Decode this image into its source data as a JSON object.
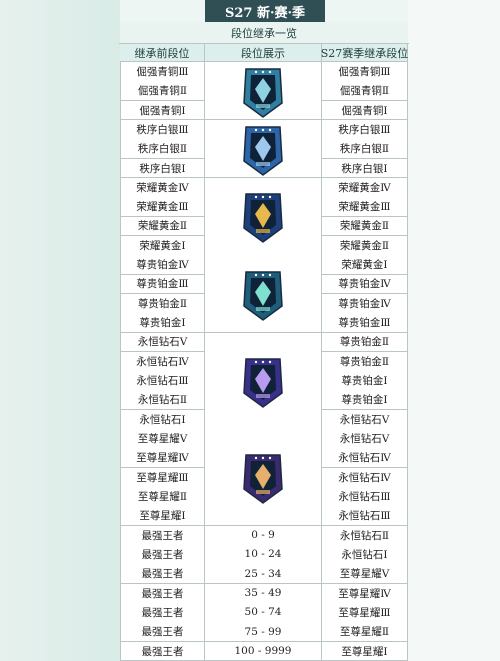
{
  "header": {
    "title": "S27 新·赛·季",
    "subtitle": "段位继承一览"
  },
  "table": {
    "columns": [
      "继承前段位",
      "段位展示",
      "S27赛季继承段位"
    ],
    "rows": [
      {
        "before": "倔强青铜Ⅲ",
        "after": "倔强青铜Ⅲ"
      },
      {
        "before": "倔强青铜Ⅱ",
        "after": "倔强青铜Ⅱ"
      },
      {
        "before": "倔强青铜Ⅰ",
        "after": "倔强青铜Ⅰ"
      },
      {
        "before": "秩序白银Ⅲ",
        "after": "秩序白银Ⅲ"
      },
      {
        "before": "秩序白银Ⅱ",
        "after": "秩序白银Ⅱ"
      },
      {
        "before": "秩序白银Ⅰ",
        "after": "秩序白银Ⅰ"
      },
      {
        "before": "荣耀黄金Ⅳ",
        "after": "荣耀黄金Ⅳ"
      },
      {
        "before": "荣耀黄金Ⅲ",
        "after": "荣耀黄金Ⅲ"
      },
      {
        "before": "荣耀黄金Ⅱ",
        "after": "荣耀黄金Ⅱ"
      },
      {
        "before": "荣耀黄金Ⅰ",
        "after": "荣耀黄金Ⅱ"
      },
      {
        "before": "尊贵铂金Ⅳ",
        "after": "荣耀黄金Ⅰ"
      },
      {
        "before": "尊贵铂金Ⅲ",
        "after": "尊贵铂金Ⅳ"
      },
      {
        "before": "尊贵铂金Ⅱ",
        "after": "尊贵铂金Ⅳ"
      },
      {
        "before": "尊贵铂金Ⅰ",
        "after": "尊贵铂金Ⅲ"
      },
      {
        "before": "永恒钻石Ⅴ",
        "after": "尊贵铂金Ⅱ"
      },
      {
        "before": "永恒钻石Ⅳ",
        "after": "尊贵铂金Ⅱ"
      },
      {
        "before": "永恒钻石Ⅲ",
        "after": "尊贵铂金Ⅰ"
      },
      {
        "before": "永恒钻石Ⅱ",
        "after": "尊贵铂金Ⅰ"
      },
      {
        "before": "永恒钻石Ⅰ",
        "after": "永恒钻石Ⅴ"
      },
      {
        "before": "至尊星耀Ⅴ",
        "after": "永恒钻石Ⅴ"
      },
      {
        "before": "至尊星耀Ⅳ",
        "after": "永恒钻石Ⅳ"
      },
      {
        "before": "至尊星耀Ⅲ",
        "after": "永恒钻石Ⅳ"
      },
      {
        "before": "至尊星耀Ⅱ",
        "after": "永恒钻石Ⅲ"
      },
      {
        "before": "至尊星耀Ⅰ",
        "after": "永恒钻石Ⅲ"
      },
      {
        "before": "最强王者",
        "stars": "0 - 9",
        "after": "永恒钻石Ⅱ"
      },
      {
        "before": "最强王者",
        "stars": "10 - 24",
        "after": "永恒钻石Ⅰ"
      },
      {
        "before": "最强王者",
        "stars": "25 - 34",
        "after": "至尊星耀Ⅴ"
      },
      {
        "before": "最强王者",
        "stars": "35 - 49",
        "after": "至尊星耀Ⅳ"
      },
      {
        "before": "最强王者",
        "stars": "50 - 74",
        "after": "至尊星耀Ⅲ"
      },
      {
        "before": "最强王者",
        "stars": "75 - 99",
        "after": "至尊星耀Ⅱ"
      },
      {
        "before": "最强王者",
        "stars": "100 - 9999",
        "after": "至尊星耀Ⅰ"
      }
    ]
  }
}
